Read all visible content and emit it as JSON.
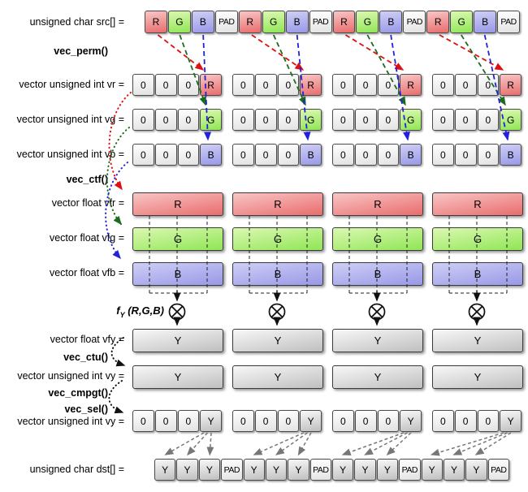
{
  "ops": {
    "perm": "vec_perm()",
    "ctf": "vec_ctf()",
    "ctu": "vec_ctu()",
    "cmpgt": "vec_cmpgt()",
    "sel": "vec_sel()"
  },
  "fy_label": {
    "f": "f",
    "sub": "Y",
    "args": " (R,G,B)"
  },
  "group_count": 4,
  "src_row": {
    "label": "unsigned char src[] =",
    "cells": [
      "R",
      "G",
      "B",
      "PAD",
      "R",
      "G",
      "B",
      "PAD",
      "R",
      "G",
      "B",
      "PAD",
      "R",
      "G",
      "B",
      "PAD"
    ]
  },
  "vr_row": {
    "label": "vector unsigned int vr =",
    "group_cells": [
      "0",
      "0",
      "0",
      "R"
    ]
  },
  "vg_row": {
    "label": "vector unsigned int vg =",
    "group_cells": [
      "0",
      "0",
      "0",
      "G"
    ]
  },
  "vb_row": {
    "label": "vector unsigned int vb =",
    "group_cells": [
      "0",
      "0",
      "0",
      "B"
    ]
  },
  "vfr_row": {
    "label": "vector float vfr =",
    "bar": "R"
  },
  "vfg_row": {
    "label": "vector float vfg =",
    "bar": "G"
  },
  "vfb_row": {
    "label": "vector float vfb =",
    "bar": "B"
  },
  "vfy_row": {
    "label": "vector float vfy =",
    "bar": "Y"
  },
  "vy_row": {
    "label": "vector unsigned int vy =",
    "bar": "Y"
  },
  "vy2_row": {
    "label": "vector unsigned int vy =",
    "group_cells": [
      "0",
      "0",
      "0",
      "Y"
    ]
  },
  "dst_row": {
    "label": "unsigned char dst[] =",
    "cells": [
      "Y",
      "Y",
      "Y",
      "PAD",
      "Y",
      "Y",
      "Y",
      "PAD",
      "Y",
      "Y",
      "Y",
      "PAD",
      "Y",
      "Y",
      "Y",
      "PAD"
    ]
  },
  "colors": {
    "cell_red_top": "#f8c6c6",
    "cell_red_bottom": "#e96c6c",
    "cell_green_top": "#dcf8b2",
    "cell_green_bottom": "#8fe655",
    "cell_blue_top": "#cfcff5",
    "cell_blue_bottom": "#9898e8",
    "cell_white_top": "#ffffff",
    "cell_white_bottom": "#e2e2e2",
    "cell_gray_top": "#f8f8f8",
    "cell_gray_bottom": "#bfbfbf",
    "arrow_red": "#dd1111",
    "arrow_green": "#1d6b1d",
    "arrow_blue": "#2222dd",
    "arrow_black": "#111111",
    "arrow_gray": "#777777"
  }
}
